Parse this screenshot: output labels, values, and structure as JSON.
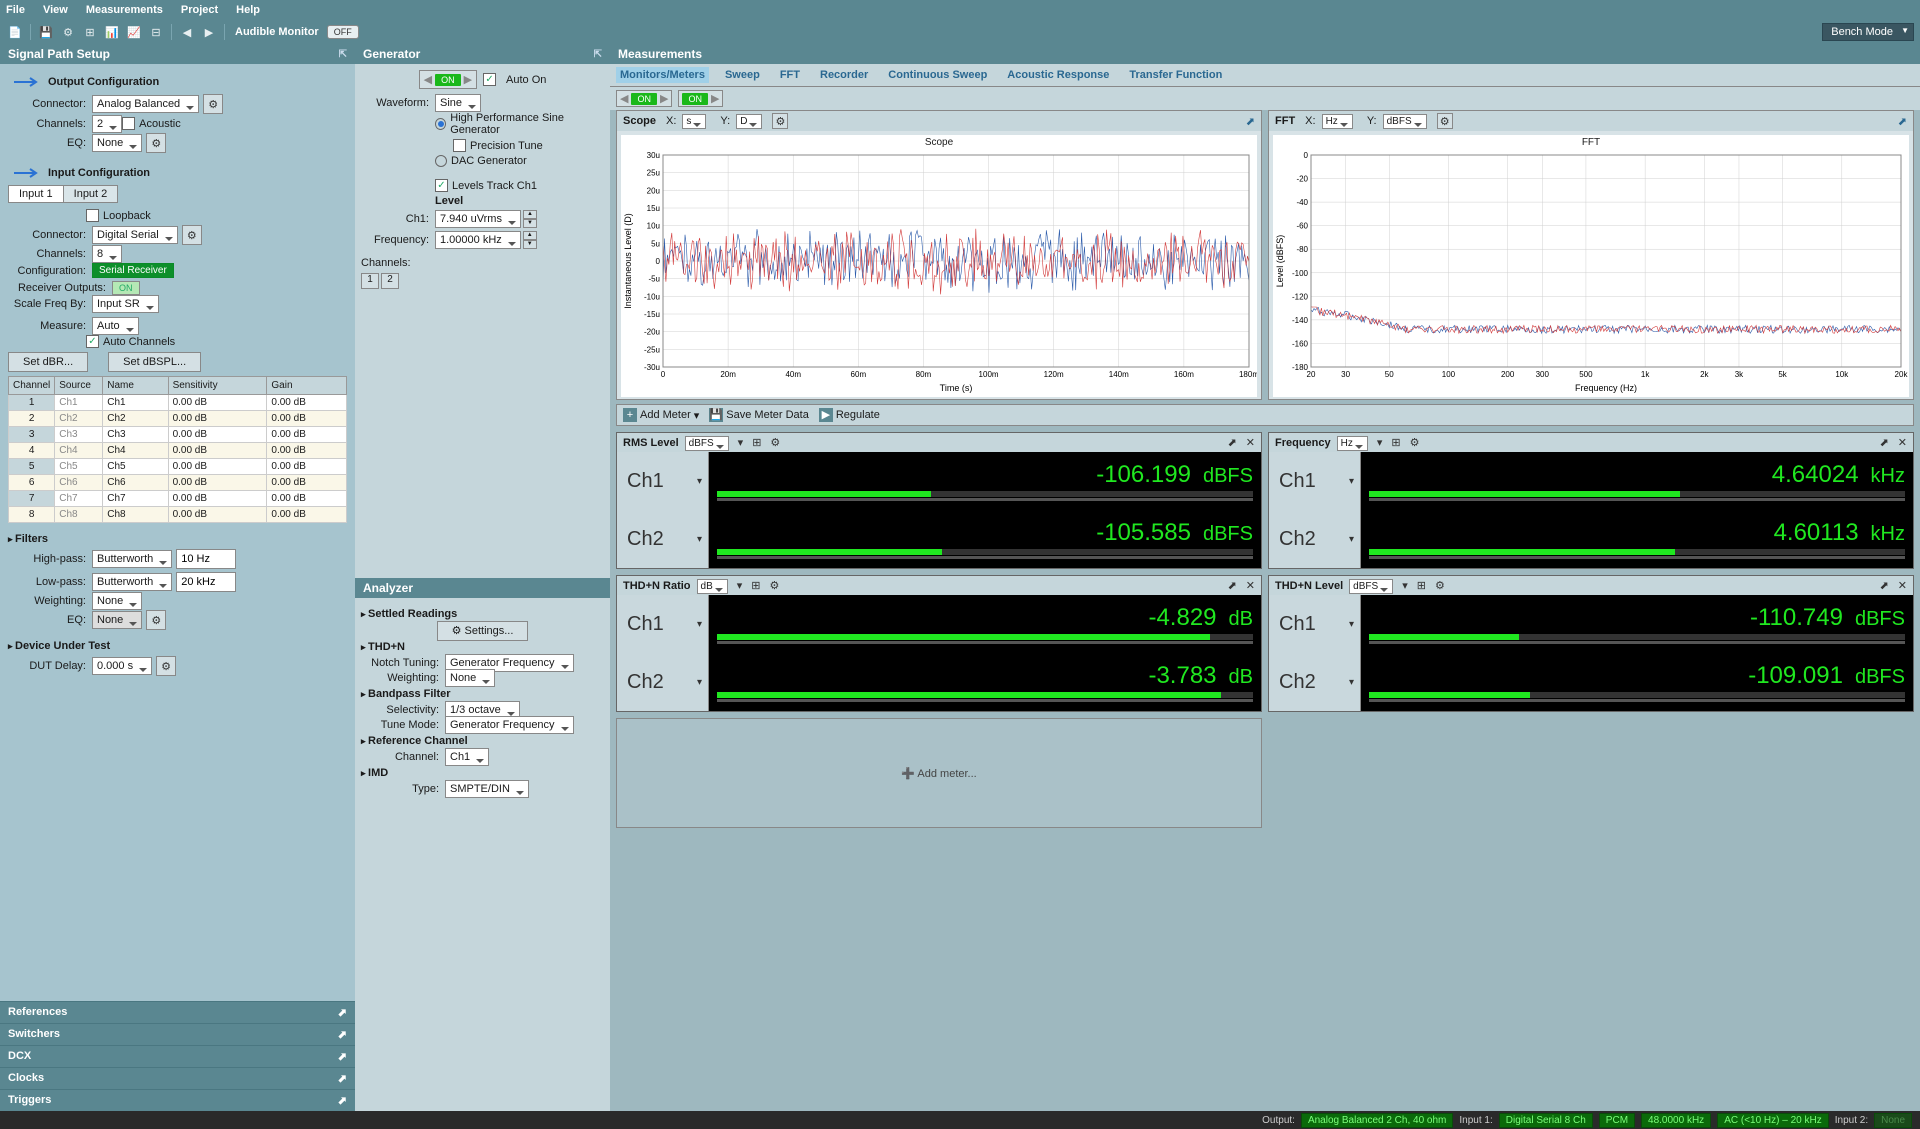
{
  "menu": [
    "File",
    "View",
    "Measurements",
    "Project",
    "Help"
  ],
  "toolbar": {
    "audible_label": "Audible Monitor",
    "off": "OFF",
    "bench_mode": "Bench Mode"
  },
  "signal_path": {
    "title": "Signal Path Setup",
    "output_config": "Output Configuration",
    "connector_label": "Connector:",
    "output_connector": "Analog Balanced",
    "channels_label": "Channels:",
    "output_channels": "2",
    "acoustic": "Acoustic",
    "eq_label": "EQ:",
    "eq_value": "None",
    "input_config": "Input Configuration",
    "input_tabs": [
      "Input 1",
      "Input 2"
    ],
    "loopback": "Loopback",
    "input_connector": "Digital Serial",
    "input_channels": "8",
    "config_label": "Configuration:",
    "config_value": "Serial Receiver",
    "recv_outputs_label": "Receiver Outputs:",
    "recv_on": "ON",
    "scale_label": "Scale Freq By:",
    "scale_value": "Input SR",
    "measure_label": "Measure:",
    "measure_value": "Auto",
    "auto_channels": "Auto Channels",
    "set_dbr": "Set dBR...",
    "set_dbspl": "Set dBSPL...",
    "table_headers": [
      "Channel",
      "Source",
      "Name",
      "Sensitivity",
      "Gain"
    ],
    "channels_table": [
      {
        "n": "1",
        "src": "Ch1",
        "name": "Ch1",
        "sens": "0.00 dB",
        "gain": "0.00 dB"
      },
      {
        "n": "2",
        "src": "Ch2",
        "name": "Ch2",
        "sens": "0.00 dB",
        "gain": "0.00 dB"
      },
      {
        "n": "3",
        "src": "Ch3",
        "name": "Ch3",
        "sens": "0.00 dB",
        "gain": "0.00 dB"
      },
      {
        "n": "4",
        "src": "Ch4",
        "name": "Ch4",
        "sens": "0.00 dB",
        "gain": "0.00 dB"
      },
      {
        "n": "5",
        "src": "Ch5",
        "name": "Ch5",
        "sens": "0.00 dB",
        "gain": "0.00 dB"
      },
      {
        "n": "6",
        "src": "Ch6",
        "name": "Ch6",
        "sens": "0.00 dB",
        "gain": "0.00 dB"
      },
      {
        "n": "7",
        "src": "Ch7",
        "name": "Ch7",
        "sens": "0.00 dB",
        "gain": "0.00 dB"
      },
      {
        "n": "8",
        "src": "Ch8",
        "name": "Ch8",
        "sens": "0.00 dB",
        "gain": "0.00 dB"
      }
    ],
    "filters_title": "Filters",
    "highpass_label": "High-pass:",
    "highpass_type": "Butterworth",
    "highpass_val": "10 Hz",
    "lowpass_label": "Low-pass:",
    "lowpass_type": "Butterworth",
    "lowpass_val": "20 kHz",
    "weighting_label": "Weighting:",
    "weighting_val": "None",
    "filt_eq_val": "None",
    "dut_title": "Device Under Test",
    "dut_delay_label": "DUT Delay:",
    "dut_delay_val": "0.000 s",
    "collapse": [
      "References",
      "Switchers",
      "DCX",
      "Clocks",
      "Triggers"
    ]
  },
  "generator": {
    "title": "Generator",
    "on": "ON",
    "auto_on": "Auto On",
    "waveform_label": "Waveform:",
    "waveform_val": "Sine",
    "hp_sine": "High Performance Sine Generator",
    "precision": "Precision Tune",
    "dac": "DAC Generator",
    "levels_track": "Levels Track Ch1",
    "level_label": "Level",
    "ch1_label": "Ch1:",
    "ch1_val": "7.940 uVrms",
    "freq_label": "Frequency:",
    "freq_val": "1.00000 kHz",
    "channels_label": "Channels:",
    "analyzer_title": "Analyzer",
    "settled": "Settled Readings",
    "settings_btn": "Settings...",
    "thdn": "THD+N",
    "notch_label": "Notch Tuning:",
    "notch_val": "Generator Frequency",
    "weighting_val": "None",
    "bandpass": "Bandpass Filter",
    "selectivity_label": "Selectivity:",
    "selectivity_val": "1/3 octave",
    "tune_label": "Tune Mode:",
    "tune_val": "Generator Frequency",
    "refch": "Reference Channel",
    "refch_label": "Channel:",
    "refch_val": "Ch1",
    "imd": "IMD",
    "imd_type_label": "Type:",
    "imd_type_val": "SMPTE/DIN"
  },
  "measurements": {
    "title": "Measurements",
    "tabs": [
      "Monitors/Meters",
      "Sweep",
      "FFT",
      "Recorder",
      "Continuous Sweep",
      "Acoustic Response",
      "Transfer Function"
    ],
    "on": "ON",
    "scope": {
      "title": "Scope",
      "x_label": "X:",
      "x_unit": "s",
      "y_label": "Y:",
      "y_unit": "D",
      "chart_title": "Scope",
      "x_axis_label": "Time (s)",
      "y_axis_label": "Instantaneous Level (D)",
      "x_ticks": [
        "0",
        "20m",
        "40m",
        "60m",
        "80m",
        "100m",
        "120m",
        "140m",
        "160m",
        "180m"
      ],
      "y_ticks": [
        "30u",
        "25u",
        "20u",
        "15u",
        "10u",
        "5u",
        "0",
        "-5u",
        "-10u",
        "-15u",
        "-20u",
        "-25u",
        "-30u"
      ],
      "colors": {
        "ch1": "#d23a3a",
        "ch2": "#2a5aaa",
        "grid": "#d0d0d0",
        "bg": "#ffffff"
      }
    },
    "fft": {
      "title": "FFT",
      "x_label": "X:",
      "x_unit": "Hz",
      "y_label": "Y:",
      "y_unit": "dBFS",
      "chart_title": "FFT",
      "x_axis_label": "Frequency (Hz)",
      "y_axis_label": "Level (dBFS)",
      "x_ticks": [
        "20",
        "30",
        "50",
        "100",
        "200",
        "300",
        "500",
        "1k",
        "2k",
        "3k",
        "5k",
        "10k",
        "20k"
      ],
      "y_ticks": [
        "0",
        "-20",
        "-40",
        "-60",
        "-80",
        "-100",
        "-120",
        "-140",
        "-160",
        "-180"
      ],
      "colors": {
        "ch1": "#d23a3a",
        "ch2": "#2a5aaa",
        "grid": "#d0d0d0",
        "bg": "#ffffff"
      }
    },
    "meters_toolbar": {
      "add_meter": "Add Meter",
      "save_meter": "Save Meter Data",
      "regulate": "Regulate"
    },
    "meters": [
      {
        "title": "RMS Level",
        "unit": "dBFS",
        "rows": [
          {
            "ch": "Ch1",
            "val": "-106.199",
            "unit": "dBFS",
            "bar": 40
          },
          {
            "ch": "Ch2",
            "val": "-105.585",
            "unit": "dBFS",
            "bar": 42
          }
        ]
      },
      {
        "title": "Frequency",
        "unit": "Hz",
        "rows": [
          {
            "ch": "Ch1",
            "val": "4.64024",
            "unit": "kHz",
            "bar": 58
          },
          {
            "ch": "Ch2",
            "val": "4.60113",
            "unit": "kHz",
            "bar": 57
          }
        ]
      },
      {
        "title": "THD+N Ratio",
        "unit": "dB",
        "rows": [
          {
            "ch": "Ch1",
            "val": "-4.829",
            "unit": "dB",
            "bar": 92
          },
          {
            "ch": "Ch2",
            "val": "-3.783",
            "unit": "dB",
            "bar": 94
          }
        ]
      },
      {
        "title": "THD+N Level",
        "unit": "dBFS",
        "rows": [
          {
            "ch": "Ch1",
            "val": "-110.749",
            "unit": "dBFS",
            "bar": 28
          },
          {
            "ch": "Ch2",
            "val": "-109.091",
            "unit": "dBFS",
            "bar": 30
          }
        ]
      }
    ],
    "add_meter_zone": "Add meter..."
  },
  "statusbar": {
    "output_label": "Output:",
    "output_val": "Analog Balanced 2 Ch, 40 ohm",
    "input1_label": "Input 1:",
    "input1_vals": [
      "Digital Serial 8 Ch",
      "PCM",
      "48.0000 kHz",
      "AC (<10 Hz) – 20 kHz"
    ],
    "input2_label": "Input 2:",
    "input2_val": "None"
  }
}
